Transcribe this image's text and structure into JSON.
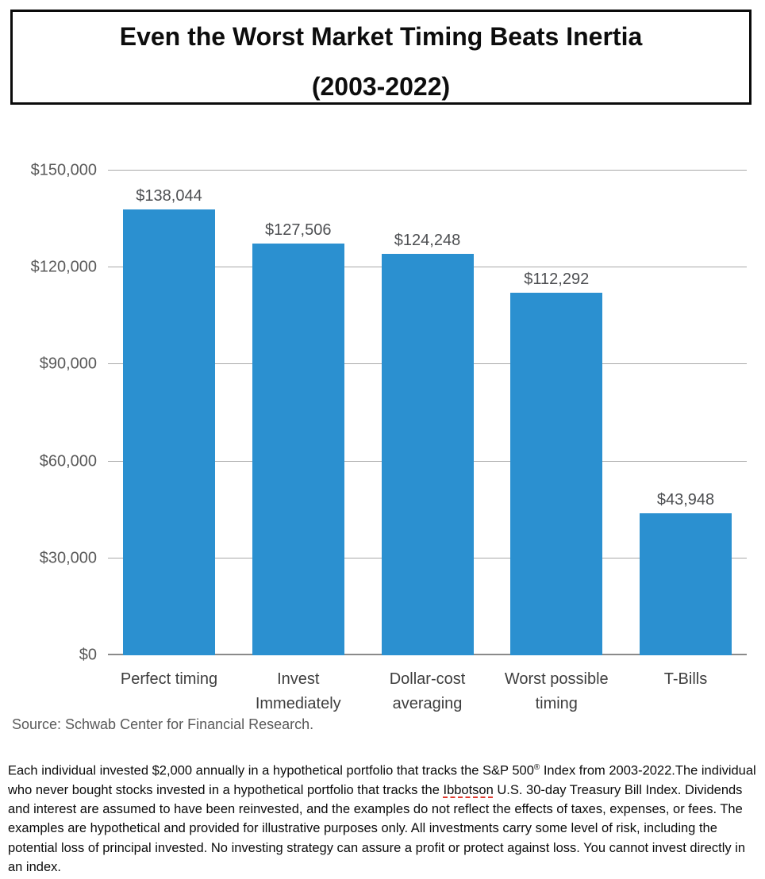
{
  "title": {
    "line1": "Even the Worst Market Timing Beats Inertia",
    "line2": "(2003-2022)"
  },
  "chart_data": {
    "type": "bar",
    "title": "Even the Worst Market Timing Beats Inertia (2003-2022)",
    "categories": [
      "Perfect timing",
      "Invest Immediately",
      "Dollar-cost averaging",
      "Worst possible timing",
      "T-Bills"
    ],
    "category_lines": [
      [
        "Perfect timing"
      ],
      [
        "Invest",
        "Immediately"
      ],
      [
        "Dollar-cost",
        "averaging"
      ],
      [
        "Worst possible",
        "timing"
      ],
      [
        "T-Bills"
      ]
    ],
    "values": [
      138044,
      127506,
      124248,
      112292,
      43948
    ],
    "value_labels": [
      "$138,044",
      "$127,506",
      "$124,248",
      "$112,292",
      "$43,948"
    ],
    "xlabel": "",
    "ylabel": "",
    "ylim": [
      0,
      150000
    ],
    "yticks": [
      150000,
      120000,
      90000,
      60000,
      30000,
      0
    ],
    "ytick_labels": [
      "$150,000",
      "$120,000",
      "$90,000",
      "$60,000",
      "$30,000",
      "$0"
    ],
    "grid": "horizontal gridlines on",
    "legend": "none",
    "bar_color": "#2b90d0",
    "gridline_color": "#a9a9a9",
    "baseline_color": "#8a8a8a"
  },
  "source": "Source: Schwab Center for Financial Research.",
  "footnote": {
    "seg1": "Each individual invested $2,000 annually in a hypothetical portfolio that tracks the S&P 500",
    "reg_mark": "®",
    "seg2": " Index from 2003-2022.The individual who never bought stocks invested in a hypothetical portfolio that tracks the ",
    "misspelled_word": "Ibbotson",
    "seg3": " U.S. 30-day Treasury Bill Index. Dividends and interest are assumed to have been reinvested, and the examples do not reflect the effects of taxes, expenses, or fees. The examples are hypothetical and provided for illustrative purposes only. All investments carry some level of risk, including the potential loss of principal invested. No investing strategy can assure a profit or protect against loss. You cannot invest directly in an index."
  }
}
